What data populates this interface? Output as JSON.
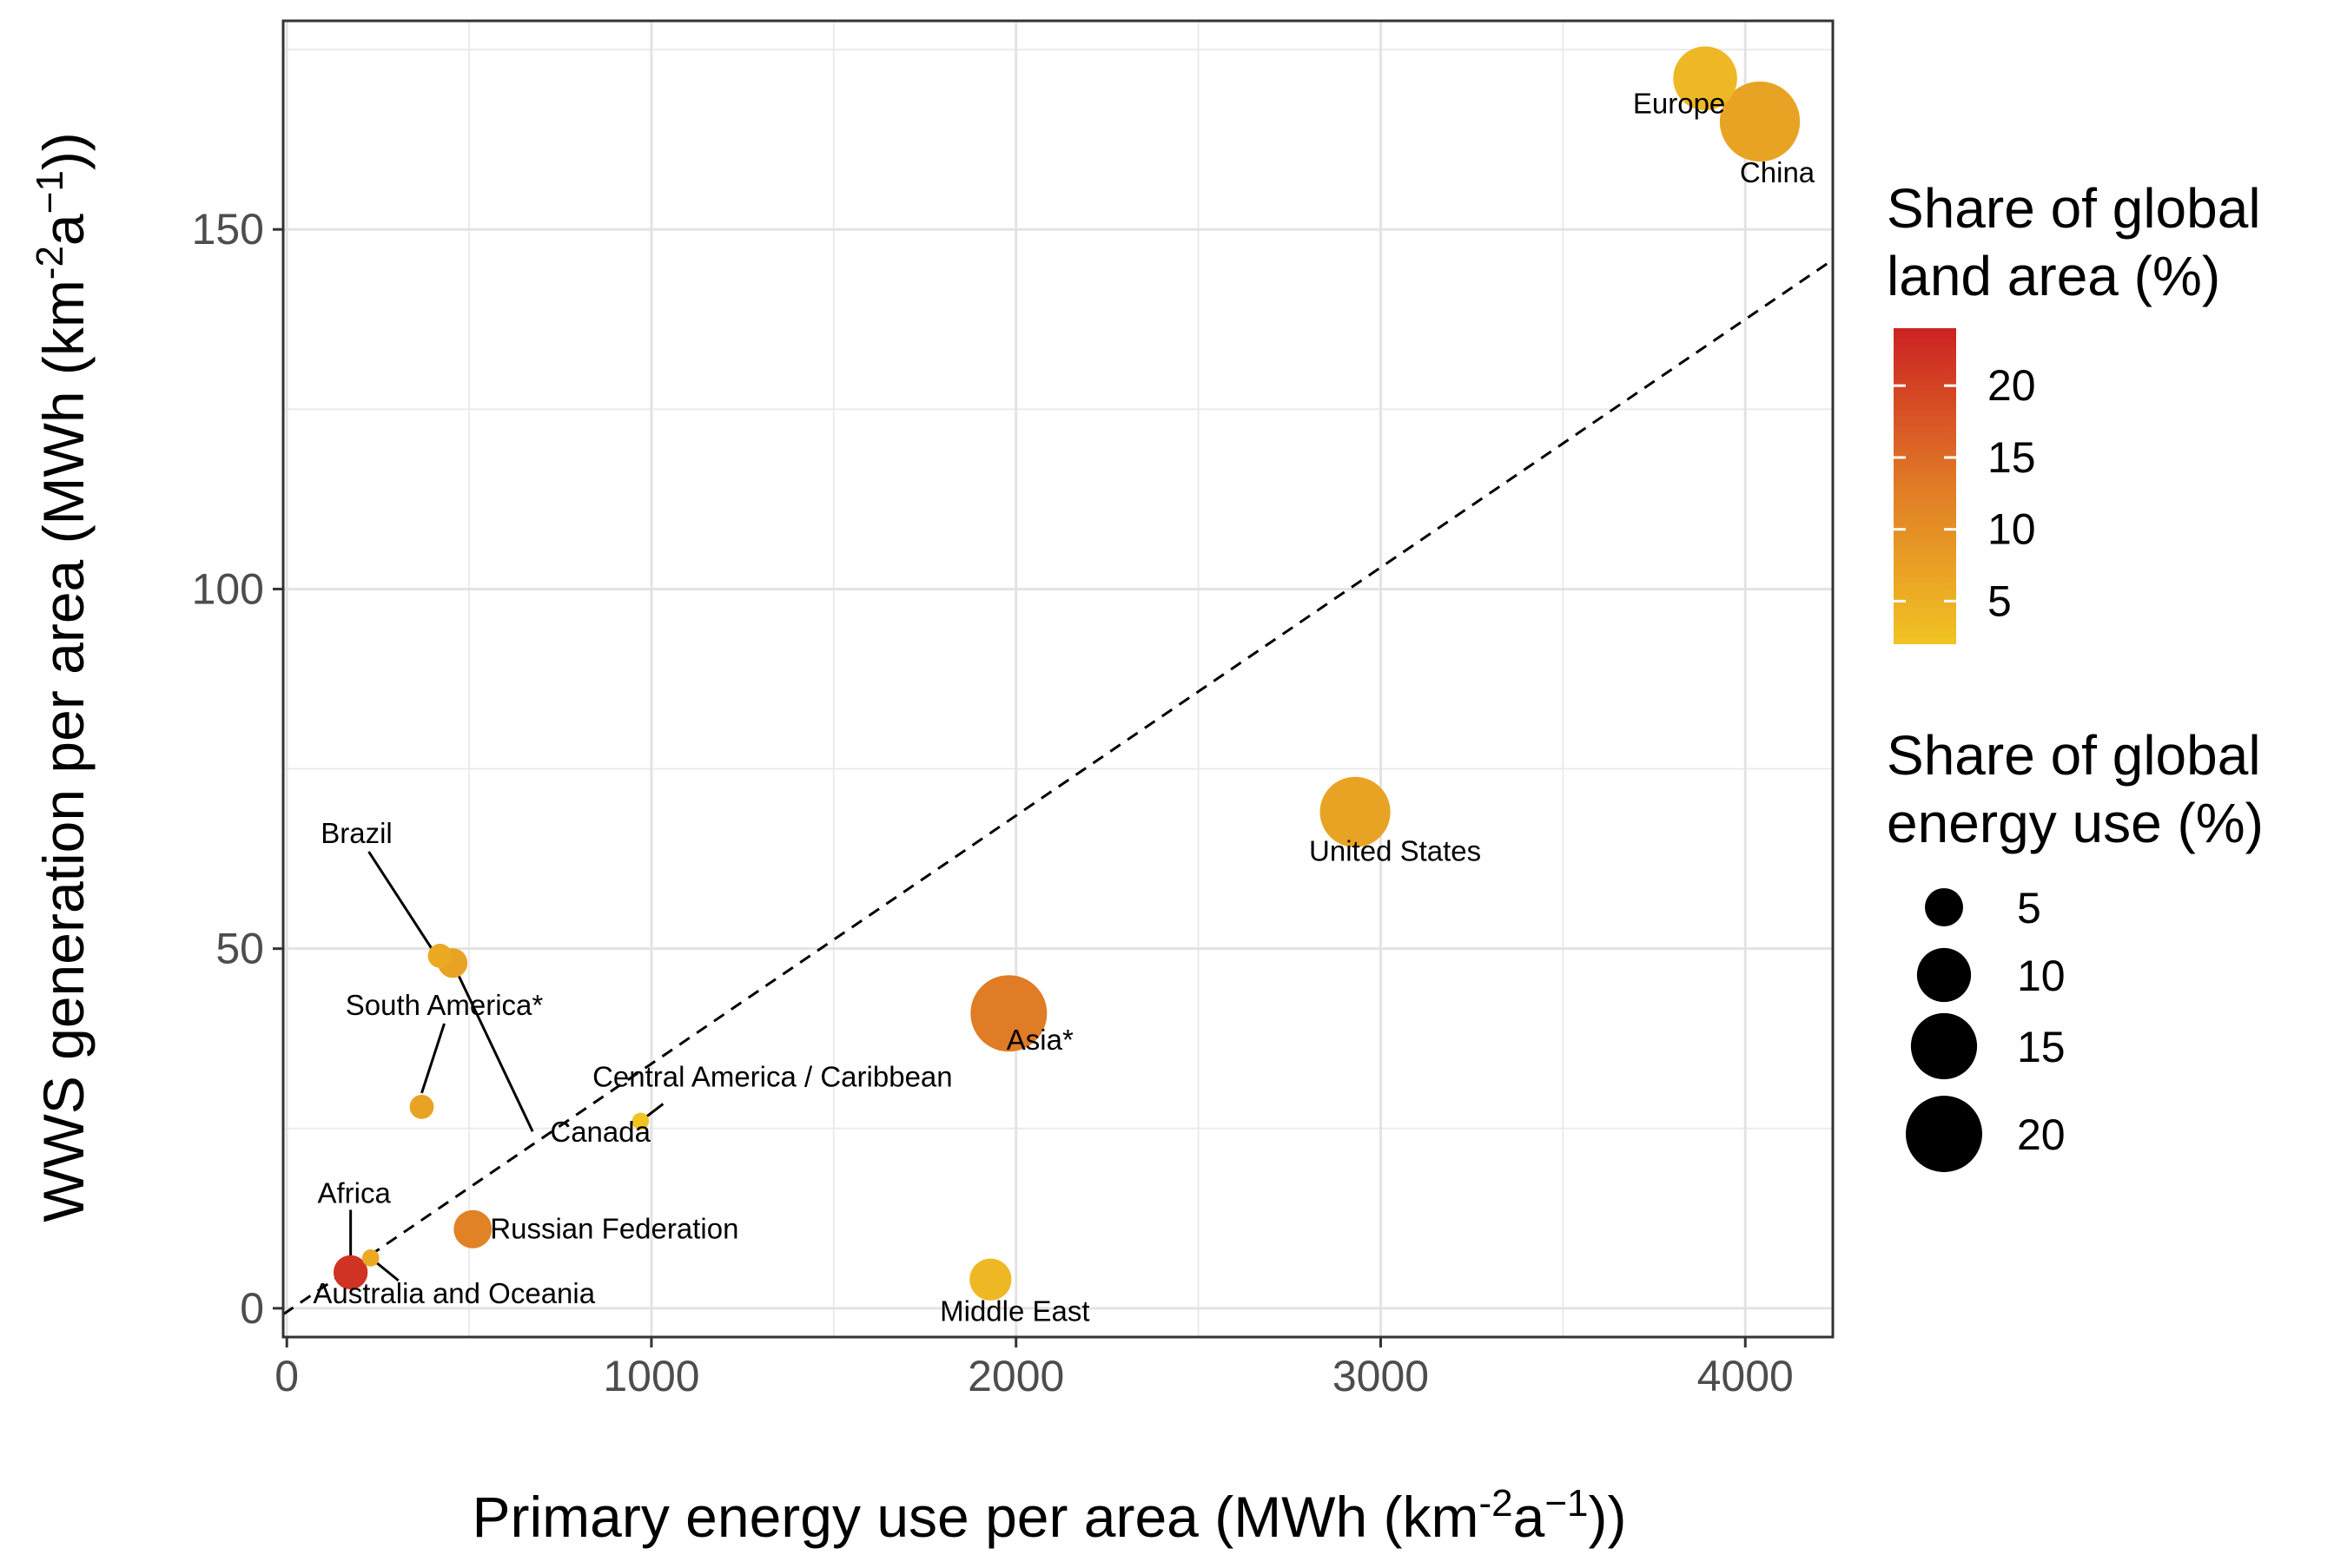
{
  "chart_data": {
    "type": "scatter",
    "xlabel": {
      "base": "Primary energy use per area (MWh (km",
      "sup1": "-2",
      "mid": "a",
      "sup2": "−1",
      "end": "))"
    },
    "ylabel": {
      "base": "WWS generation per area (MWh (km",
      "sup1": "-2",
      "mid": "a",
      "sup2": "−1",
      "end": "))"
    },
    "xlim": [
      -10,
      4240
    ],
    "ylim": [
      -4,
      179
    ],
    "x_ticks": [
      0,
      1000,
      2000,
      3000,
      4000
    ],
    "x_tick_labels": [
      "0",
      "1000",
      "2000",
      "3000",
      "4000"
    ],
    "y_ticks": [
      0,
      50,
      100,
      150
    ],
    "y_tick_labels": [
      "0",
      "50",
      "100",
      "150"
    ],
    "grid": true,
    "reference_line": {
      "style": "dashed",
      "slope": 0.0345,
      "intercept": -0.5
    },
    "points": [
      {
        "name": "Europe",
        "x": 3890,
        "y": 171,
        "land_share": 4,
        "energy_share": 14
      },
      {
        "name": "China",
        "x": 4040,
        "y": 165,
        "land_share": 7,
        "energy_share": 22
      },
      {
        "name": "United States",
        "x": 2930,
        "y": 69,
        "land_share": 7,
        "energy_share": 17
      },
      {
        "name": "Asia*",
        "x": 1980,
        "y": 41,
        "land_share": 13,
        "energy_share": 20
      },
      {
        "name": "Brazil",
        "x": 420,
        "y": 49,
        "land_share": 6,
        "energy_share": 2
      },
      {
        "name": "Canada",
        "x": 455,
        "y": 48,
        "land_share": 7,
        "energy_share": 3
      },
      {
        "name": "South America*",
        "x": 370,
        "y": 28,
        "land_share": 7,
        "energy_share": 2
      },
      {
        "name": "Central America / Caribbean",
        "x": 970,
        "y": 26,
        "land_share": 2,
        "energy_share": 1
      },
      {
        "name": "Russian Federation",
        "x": 510,
        "y": 11,
        "land_share": 12,
        "energy_share": 5
      },
      {
        "name": "Africa",
        "x": 175,
        "y": 5,
        "land_share": 22,
        "energy_share": 4
      },
      {
        "name": "Australia and Oceania",
        "x": 230,
        "y": 7,
        "land_share": 6,
        "energy_share": 1
      },
      {
        "name": "Middle East",
        "x": 1930,
        "y": 4,
        "land_share": 4,
        "energy_share": 6
      }
    ],
    "legend": {
      "placement": "right",
      "color": {
        "title_lines": [
          "Share of global",
          "land area (%)"
        ],
        "min": 2,
        "max": 24,
        "ticks": [
          5,
          10,
          15,
          20
        ],
        "low_color": "#F1C423",
        "mid_color": "#E07B26",
        "high_color": "#CC2223"
      },
      "size": {
        "title_lines": [
          "Share of global",
          "energy use (%)"
        ],
        "values": [
          5,
          10,
          15,
          20
        ],
        "point_color": "#000000"
      }
    }
  }
}
